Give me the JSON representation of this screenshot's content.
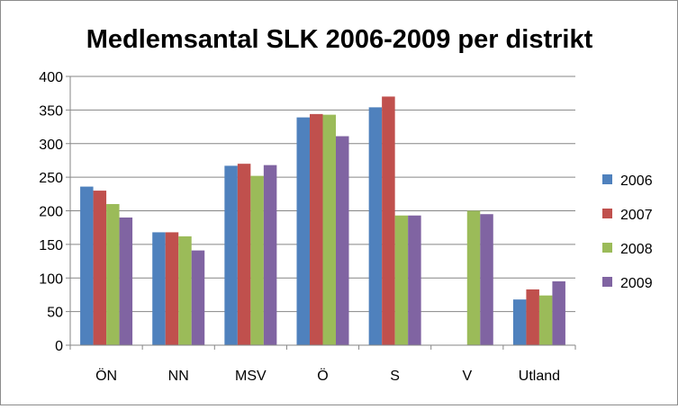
{
  "chart_data": {
    "type": "bar",
    "title": "Medlemsantal SLK 2006-2009 per distrikt",
    "xlabel": "",
    "ylabel": "",
    "categories": [
      "ÖN",
      "NN",
      "MSV",
      "Ö",
      "S",
      "V",
      "Utland"
    ],
    "ylim": [
      0,
      400
    ],
    "yticks": [
      0,
      50,
      100,
      150,
      200,
      250,
      300,
      350,
      400
    ],
    "grid": true,
    "legend_position": "right",
    "series": [
      {
        "name": "2006",
        "color": "#4f81bd",
        "values": [
          236,
          168,
          267,
          339,
          354,
          null,
          68
        ]
      },
      {
        "name": "2007",
        "color": "#c0504d",
        "values": [
          230,
          168,
          270,
          344,
          370,
          null,
          83
        ]
      },
      {
        "name": "2008",
        "color": "#9bbb59",
        "values": [
          210,
          162,
          252,
          343,
          193,
          200,
          74
        ]
      },
      {
        "name": "2009",
        "color": "#8064a2",
        "values": [
          190,
          141,
          268,
          311,
          193,
          195,
          95
        ]
      }
    ]
  }
}
